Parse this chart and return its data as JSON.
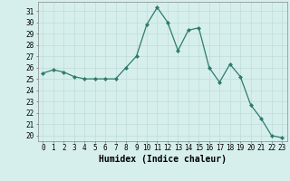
{
  "x": [
    0,
    1,
    2,
    3,
    4,
    5,
    6,
    7,
    8,
    9,
    10,
    11,
    12,
    13,
    14,
    15,
    16,
    17,
    18,
    19,
    20,
    21,
    22,
    23
  ],
  "y": [
    25.5,
    25.8,
    25.6,
    25.2,
    25.0,
    25.0,
    25.0,
    25.0,
    26.0,
    27.0,
    29.8,
    31.3,
    30.0,
    27.5,
    29.3,
    29.5,
    26.0,
    24.7,
    26.3,
    25.2,
    22.7,
    21.5,
    20.0,
    19.8
  ],
  "xlabel": "Humidex (Indice chaleur)",
  "ylabel_ticks": [
    20,
    21,
    22,
    23,
    24,
    25,
    26,
    27,
    28,
    29,
    30,
    31
  ],
  "ylim": [
    19.5,
    31.8
  ],
  "xlim": [
    -0.5,
    23.5
  ],
  "line_color": "#2e7b6e",
  "bg_color": "#d6efec",
  "grid_color_major": "#b8d9d5",
  "grid_color_minor": "#cce6e2",
  "tick_label_fontsize": 5.5,
  "xlabel_fontsize": 7,
  "marker": "D",
  "marker_size": 2.0,
  "line_width": 0.9
}
